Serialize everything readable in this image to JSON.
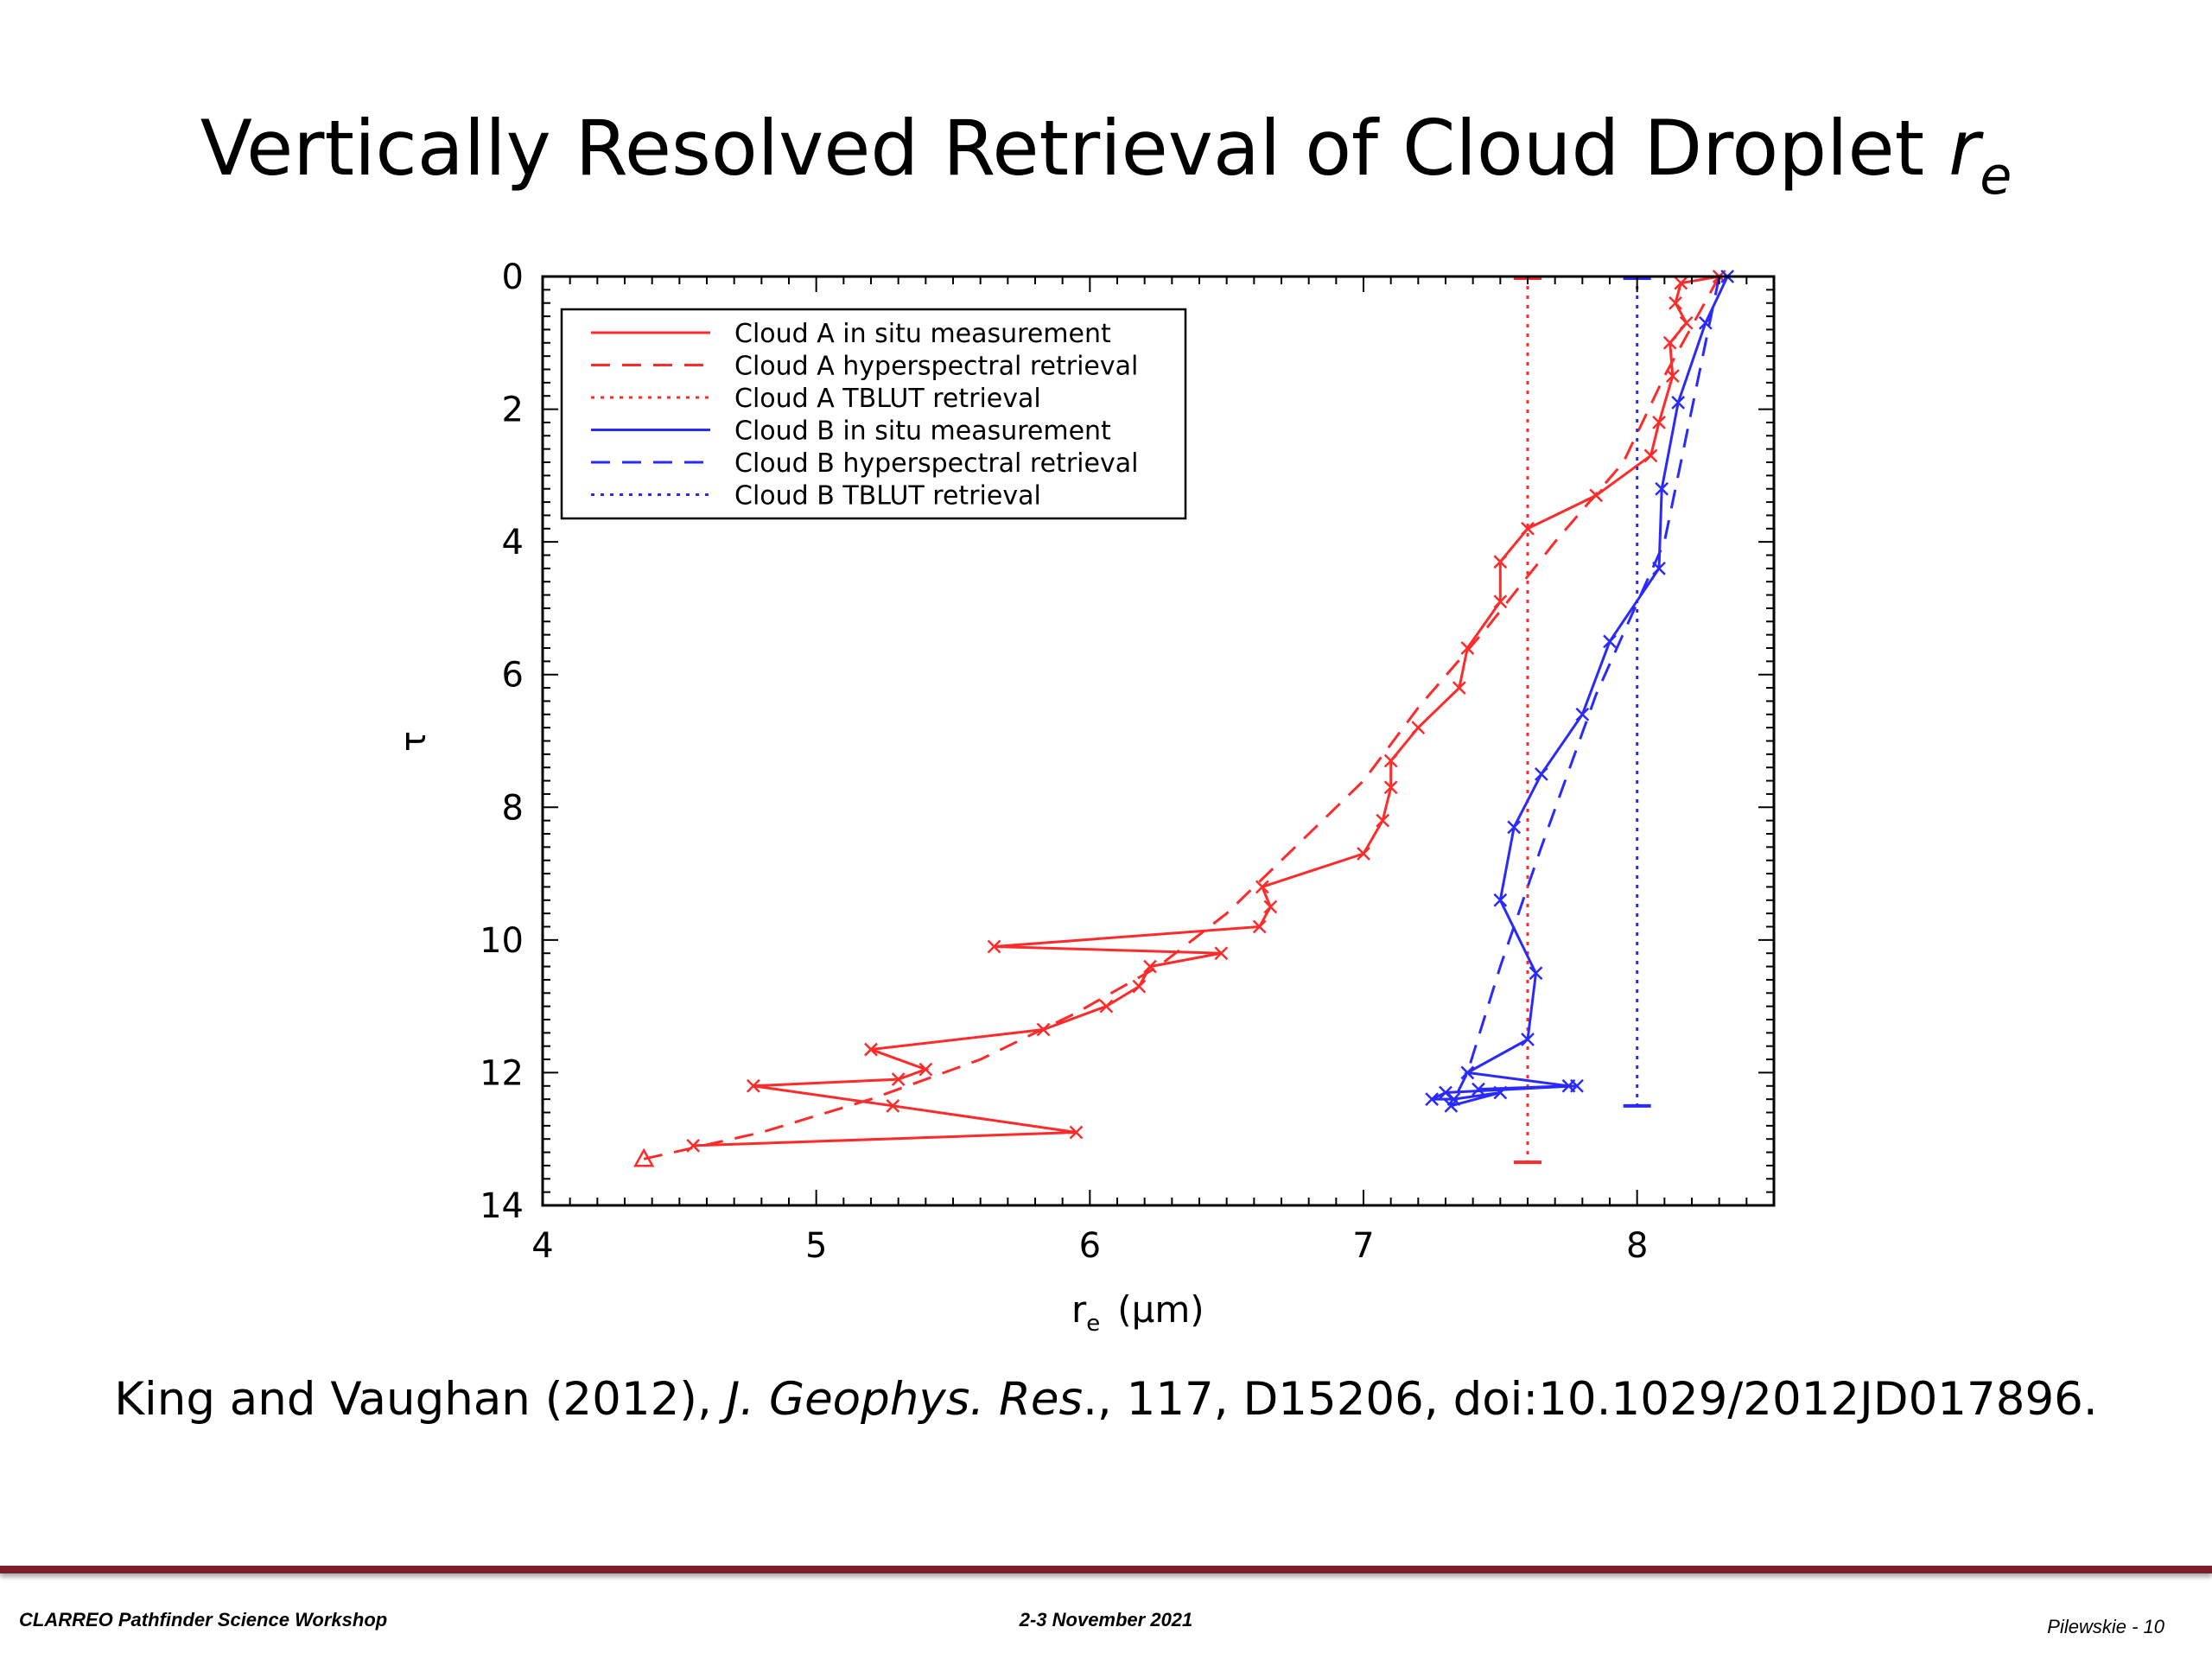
{
  "slide": {
    "title": "Vertically Resolved Retrieval of Cloud Droplet ",
    "title_var": "r",
    "title_sub": "e",
    "citation": {
      "pre": "King and Vaughan (2012), ",
      "journal": "J. Geophys. Res",
      "post": "., 117, D15206, doi:10.1029/2012JD017896."
    },
    "footer": {
      "left": "CLARREO Pathfinder Science Workshop",
      "center": "2-3 November 2021",
      "right": "Pilewskie  - 10"
    }
  },
  "chart_data": {
    "type": "line",
    "title": "",
    "xlabel": "r",
    "xlabel_sub": "e",
    "xlabel_unit": "(μm)",
    "ylabel": "τ",
    "xlim": [
      4,
      8.5
    ],
    "ylim": [
      14,
      0
    ],
    "y_inverted": true,
    "x_ticks": [
      4,
      5,
      6,
      7,
      8
    ],
    "y_ticks": [
      0,
      2,
      4,
      6,
      8,
      10,
      12,
      14
    ],
    "grid": false,
    "legend_position": "top-left",
    "colors": {
      "cloud_a": "#ff2a2a",
      "cloud_b": "#2a2aff"
    },
    "series": [
      {
        "name": "Cloud A in situ measurement",
        "color": "#ff2a2a",
        "style": "solid",
        "marker": "x",
        "points": [
          [
            8.3,
            0
          ],
          [
            8.16,
            0.1
          ],
          [
            8.14,
            0.4
          ],
          [
            8.18,
            0.7
          ],
          [
            8.12,
            1.0
          ],
          [
            8.13,
            1.5
          ],
          [
            8.08,
            2.2
          ],
          [
            8.05,
            2.7
          ],
          [
            7.85,
            3.3
          ],
          [
            7.6,
            3.8
          ],
          [
            7.5,
            4.3
          ],
          [
            7.5,
            4.9
          ],
          [
            7.38,
            5.6
          ],
          [
            7.35,
            6.2
          ],
          [
            7.2,
            6.8
          ],
          [
            7.1,
            7.3
          ],
          [
            7.1,
            7.7
          ],
          [
            7.07,
            8.2
          ],
          [
            7.0,
            8.7
          ],
          [
            6.63,
            9.2
          ],
          [
            6.66,
            9.5
          ],
          [
            6.62,
            9.8
          ],
          [
            5.65,
            10.1
          ],
          [
            6.48,
            10.2
          ],
          [
            6.22,
            10.4
          ],
          [
            6.18,
            10.7
          ],
          [
            6.06,
            11.0
          ],
          [
            5.83,
            11.35
          ],
          [
            5.2,
            11.65
          ],
          [
            5.4,
            11.95
          ],
          [
            5.3,
            12.1
          ],
          [
            4.77,
            12.2
          ],
          [
            5.28,
            12.5
          ],
          [
            5.95,
            12.9
          ],
          [
            4.55,
            13.1
          ]
        ]
      },
      {
        "name": "Cloud A hyperspectral retrieval",
        "color": "#ff2a2a",
        "style": "dashed",
        "marker": "triangle-end",
        "points": [
          [
            8.3,
            0
          ],
          [
            8.1,
            1.5
          ],
          [
            7.95,
            2.8
          ],
          [
            7.7,
            4.0
          ],
          [
            7.45,
            5.3
          ],
          [
            7.2,
            6.5
          ],
          [
            7.0,
            7.6
          ],
          [
            6.75,
            8.6
          ],
          [
            6.5,
            9.6
          ],
          [
            6.25,
            10.4
          ],
          [
            5.95,
            11.1
          ],
          [
            5.6,
            11.8
          ],
          [
            5.2,
            12.4
          ],
          [
            4.8,
            12.9
          ],
          [
            4.37,
            13.3
          ]
        ]
      },
      {
        "name": "Cloud A TBLUT retrieval",
        "color": "#ff2a2a",
        "style": "dotted",
        "marker": "none",
        "points": [
          [
            7.6,
            0
          ],
          [
            7.6,
            13.35
          ]
        ]
      },
      {
        "name": "Cloud B in situ measurement",
        "color": "#2a2aff",
        "style": "solid",
        "marker": "x",
        "points": [
          [
            8.33,
            0
          ],
          [
            8.25,
            0.7
          ],
          [
            8.15,
            1.9
          ],
          [
            8.09,
            3.2
          ],
          [
            8.08,
            4.4
          ],
          [
            7.9,
            5.5
          ],
          [
            7.8,
            6.6
          ],
          [
            7.65,
            7.5
          ],
          [
            7.55,
            8.3
          ],
          [
            7.5,
            9.4
          ],
          [
            7.63,
            10.5
          ],
          [
            7.6,
            11.5
          ],
          [
            7.38,
            12.0
          ],
          [
            7.75,
            12.2
          ],
          [
            7.42,
            12.25
          ],
          [
            7.78,
            12.2
          ],
          [
            7.3,
            12.3
          ],
          [
            7.25,
            12.4
          ],
          [
            7.33,
            12.4
          ],
          [
            7.5,
            12.3
          ],
          [
            7.32,
            12.5
          ]
        ]
      },
      {
        "name": "Cloud B hyperspectral retrieval",
        "color": "#2a2aff",
        "style": "dashed",
        "marker": "none",
        "points": [
          [
            8.3,
            0
          ],
          [
            8.1,
            4.0
          ],
          [
            7.85,
            6.3
          ],
          [
            7.65,
            8.6
          ],
          [
            7.5,
            10.4
          ],
          [
            7.38,
            12.0
          ],
          [
            7.32,
            12.5
          ]
        ]
      },
      {
        "name": "Cloud B TBLUT retrieval",
        "color": "#2a2aff",
        "style": "dotted",
        "marker": "none",
        "points": [
          [
            8.0,
            0
          ],
          [
            8.0,
            12.5
          ]
        ]
      }
    ]
  }
}
